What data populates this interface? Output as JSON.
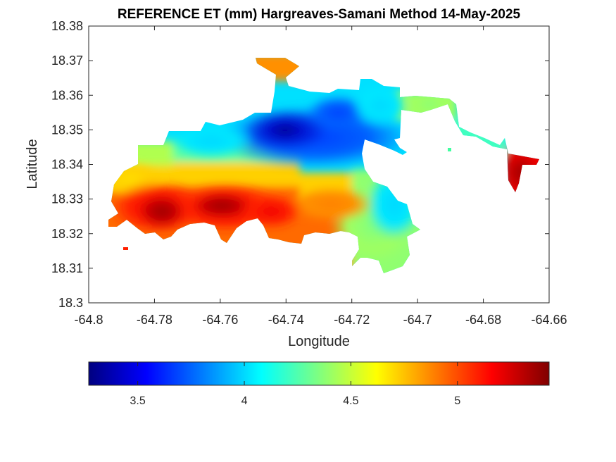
{
  "chart_data": {
    "type": "heatmap",
    "title": "REFERENCE ET (mm) Hargreaves-Samani Method  14-May-2025",
    "xlabel": "Longitude",
    "ylabel": "Latitude",
    "xlim": [
      -64.8,
      -64.66
    ],
    "ylim": [
      18.3,
      18.38
    ],
    "x_ticks": [
      "-64.8",
      "-64.78",
      "-64.76",
      "-64.74",
      "-64.72",
      "-64.7",
      "-64.68",
      "-64.66"
    ],
    "y_ticks": [
      "18.3",
      "18.31",
      "18.32",
      "18.33",
      "18.34",
      "18.35",
      "18.36",
      "18.37",
      "18.38"
    ],
    "colorbar": {
      "colormap": "jet",
      "range": [
        3.27,
        5.43
      ],
      "ticks": [
        "3.5",
        "4",
        "4.5",
        "5"
      ],
      "orientation": "horizontal",
      "location": "below"
    },
    "features": [
      {
        "name": "minimum",
        "lon": -64.741,
        "lat": 18.348,
        "value": 3.3
      },
      {
        "name": "low",
        "lon": -64.728,
        "lat": 18.354,
        "value": 3.6
      },
      {
        "name": "low",
        "lon": -64.715,
        "lat": 18.351,
        "value": 3.75
      },
      {
        "name": "maximum",
        "lon": -64.775,
        "lat": 18.329,
        "value": 5.38
      },
      {
        "name": "maximum",
        "lon": -64.757,
        "lat": 18.33,
        "value": 5.38
      },
      {
        "name": "high",
        "lon": -64.742,
        "lat": 18.327,
        "value": 5.2
      },
      {
        "name": "high",
        "lon": -64.669,
        "lat": 18.337,
        "value": 5.35
      },
      {
        "name": "moderate",
        "lon": -64.708,
        "lat": 18.319,
        "value": 4.45
      }
    ]
  }
}
